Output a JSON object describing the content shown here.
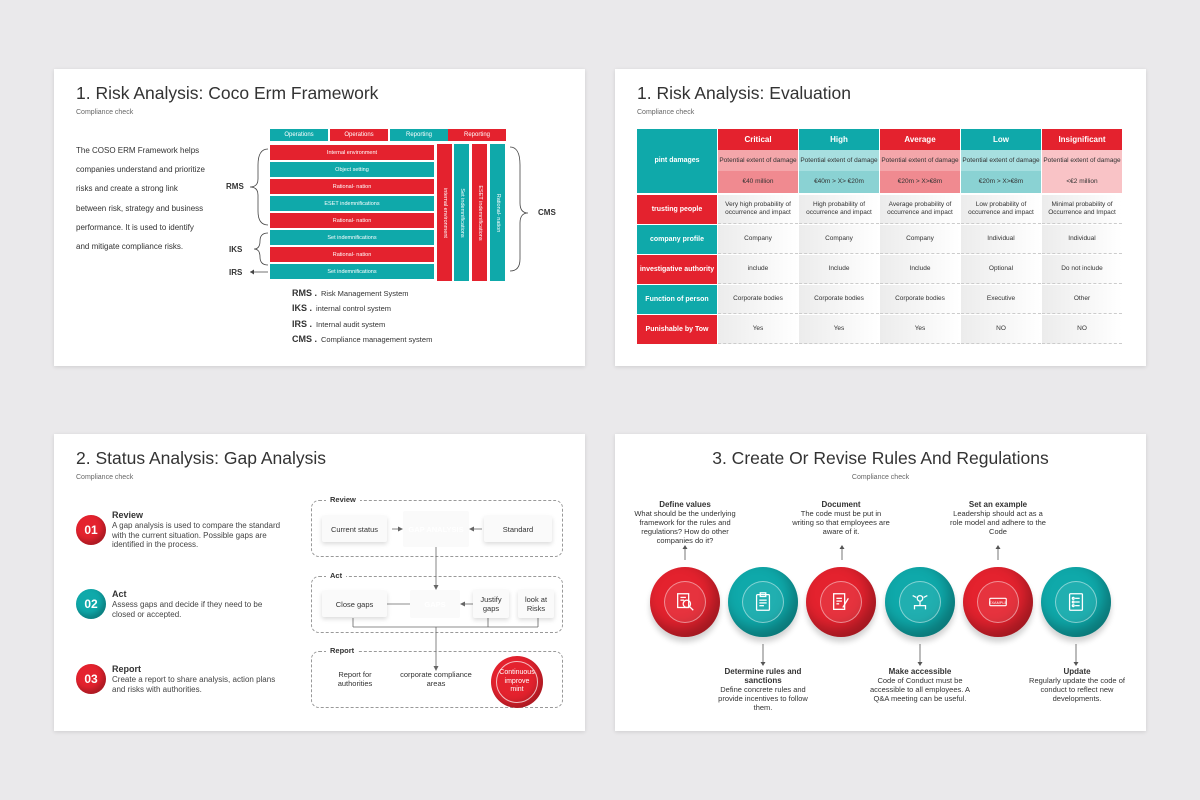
{
  "colors": {
    "red": "#e4222e",
    "teal": "#0fa9aa",
    "background": "#eae9eb"
  },
  "slide1": {
    "title": "1. Risk Analysis: Coco Erm Framework",
    "subtitle": "Compliance check",
    "text": "The COSO ERM Framework helps companies understand and prioritize risks and create a strong link between risk, strategy and business performance. It is used to identify and mitigate compliance risks.",
    "headers": [
      "Operations",
      "Operations",
      "Reporting",
      "Reporting"
    ],
    "bars": [
      "Internal environment",
      "Object setting",
      "Rational- nation",
      "ESET indemnifications",
      "Rational- nation",
      "Set indemnifications",
      "Rational- nation",
      "Set indemnifications"
    ],
    "verticals": [
      "internal environment",
      "Set indemnifications",
      "ESET indemnifications",
      "Rational- nation"
    ],
    "brace_labels": {
      "rms": "RMS",
      "iks": "IKS",
      "irs": "IRS",
      "cms": "CMS"
    },
    "legend": [
      {
        "abbr": "RMS .",
        "text": "Risk Management System"
      },
      {
        "abbr": "IKS .",
        "text": "internal control system"
      },
      {
        "abbr": "IRS .",
        "text": "Internal audit system"
      },
      {
        "abbr": "CMS .",
        "text": "Compliance management system"
      }
    ]
  },
  "slide2": {
    "title": "1. Risk Analysis: Evaluation",
    "subtitle": "Compliance check",
    "columns": [
      "Critical",
      "High",
      "Average",
      "Low",
      "Insignificant"
    ],
    "pint_damages_label": "pint damages",
    "extent_label": "Potential extent of damage",
    "amounts": [
      "€40 million",
      "€40m > X> €20m",
      "€20m > X>€8m",
      "€20m > X>€8m",
      "<€2 million"
    ],
    "rows": [
      {
        "label": "trusting people",
        "cells": [
          "Very high probability of occurrence and impact",
          "High probability of occurrence and impact",
          "Average probability of occurrence and impact",
          "Low probability of occurrence and impact",
          "Minimal probability of Occurrence and Impact"
        ]
      },
      {
        "label": "company profile",
        "cells": [
          "Company",
          "Company",
          "Company",
          "Individual",
          "Individual"
        ]
      },
      {
        "label": "investigative authority",
        "cells": [
          "include",
          "Include",
          "Include",
          "Optional",
          "Do not include"
        ]
      },
      {
        "label": "Function of person",
        "cells": [
          "Corporate bodies",
          "Corporate bodies",
          "Corporate bodies",
          "Executive",
          "Other"
        ]
      },
      {
        "label": "Punishable by Tow",
        "cells": [
          "Yes",
          "Yes",
          "Yes",
          "NO",
          "NO"
        ]
      }
    ]
  },
  "slide3": {
    "title": "2. Status Analysis: Gap Analysis",
    "subtitle": "Compliance check",
    "steps": [
      {
        "num": "01",
        "title": "Review",
        "text": "A gap analysis is used to compare the standard with the current situation. Possible gaps are identified in the process."
      },
      {
        "num": "02",
        "title": "Act",
        "text": "Assess gaps and decide if they need to be closed or accepted."
      },
      {
        "num": "03",
        "title": "Report",
        "text": "Create a report to share analysis, action plans and risks with authorities."
      }
    ],
    "groups": {
      "review": "Review",
      "act": "Act",
      "report": "Report"
    },
    "boxes": {
      "current_status": "Current status",
      "gap_analysis": "GAP ANALYSIS",
      "standard": "Standard",
      "close_gaps": "Close gaps",
      "gaps": "GAPS",
      "justify_gaps": "Justify gaps",
      "look_at_risks": "look at Risks",
      "report_authorities": "Report for authorities",
      "corporate_areas": "corporate compliance areas",
      "continuous": "Continuous improve mint"
    }
  },
  "slide4": {
    "title": "3. Create Or Revise Rules And Regulations",
    "subtitle": "Compliance check",
    "top_items": [
      {
        "title": "Define values",
        "text": "What should be the underlying framework for the rules and regulations? How do other companies do it?"
      },
      {
        "title": "Document",
        "text": "The code must be put in writing so that employees are aware of it."
      },
      {
        "title": "Set an example",
        "text": "Leadership should act as a role model and adhere to the Code"
      }
    ],
    "bottom_items": [
      {
        "title": "Determine rules and sanctions",
        "text": "Define concrete rules and provide incentives to follow them."
      },
      {
        "title": "Make accessible",
        "text": "Code of Conduct must be accessible to all employees. A Q&A meeting can be useful."
      },
      {
        "title": "Update",
        "text": "Regularly update the code of conduct to reflect new developments."
      }
    ],
    "example_badge": "EXAMPLE",
    "icons": [
      "magnifier-chart-icon",
      "clipboard-list-icon",
      "document-pen-icon",
      "network-chip-icon",
      "example-stamp-icon",
      "checklist-icon"
    ]
  }
}
